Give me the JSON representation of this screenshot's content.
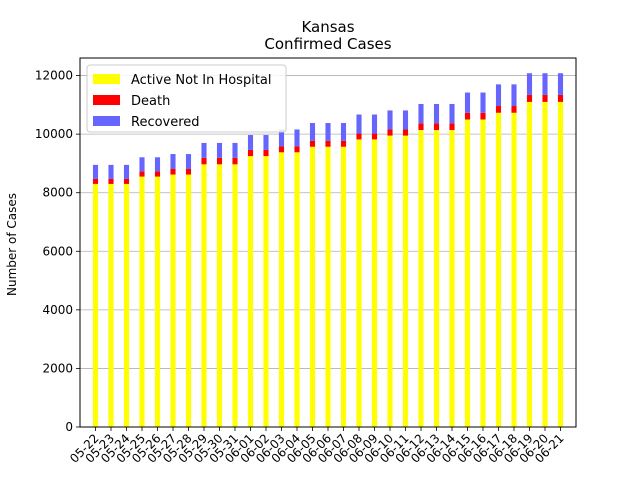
{
  "chart_data": {
    "type": "bar",
    "stacked": true,
    "title": "Kansas",
    "subtitle": "Confirmed Cases",
    "xlabel": "",
    "ylabel": "Number of Cases",
    "ylim": [
      0,
      12600
    ],
    "yticks": [
      0,
      2000,
      4000,
      6000,
      8000,
      10000,
      12000
    ],
    "grid": "y",
    "legend_position": "upper-left",
    "categories": [
      "05-22",
      "05-23",
      "05-24",
      "05-25",
      "05-26",
      "05-27",
      "05-28",
      "05-29",
      "05-30",
      "05-31",
      "06-01",
      "06-02",
      "06-03",
      "06-04",
      "06-05",
      "06-06",
      "06-07",
      "06-08",
      "06-09",
      "06-10",
      "06-11",
      "06-12",
      "06-13",
      "06-14",
      "06-15",
      "06-16",
      "06-17",
      "06-18",
      "06-19",
      "06-20",
      "06-21"
    ],
    "series": [
      {
        "name": "Active Not In Hospital",
        "color": "#ffff00",
        "values": [
          8300,
          8300,
          8300,
          8550,
          8550,
          8620,
          8620,
          8970,
          8970,
          8970,
          9250,
          9250,
          9380,
          9380,
          9570,
          9570,
          9570,
          9820,
          9820,
          9950,
          9950,
          10140,
          10140,
          10140,
          10500,
          10500,
          10730,
          10730,
          11100,
          11100,
          11100
        ]
      },
      {
        "name": "Death",
        "color": "#ff0000",
        "values": [
          170,
          170,
          170,
          180,
          180,
          190,
          190,
          220,
          220,
          220,
          210,
          210,
          200,
          200,
          200,
          200,
          200,
          200,
          200,
          210,
          210,
          230,
          230,
          230,
          230,
          230,
          230,
          230,
          240,
          240,
          240
        ]
      },
      {
        "name": "Recovered",
        "color": "#6666ff",
        "values": [
          480,
          480,
          480,
          480,
          480,
          510,
          510,
          510,
          510,
          510,
          510,
          510,
          580,
          580,
          610,
          610,
          610,
          650,
          650,
          650,
          650,
          660,
          660,
          660,
          690,
          690,
          740,
          740,
          740,
          740,
          740
        ]
      }
    ]
  }
}
